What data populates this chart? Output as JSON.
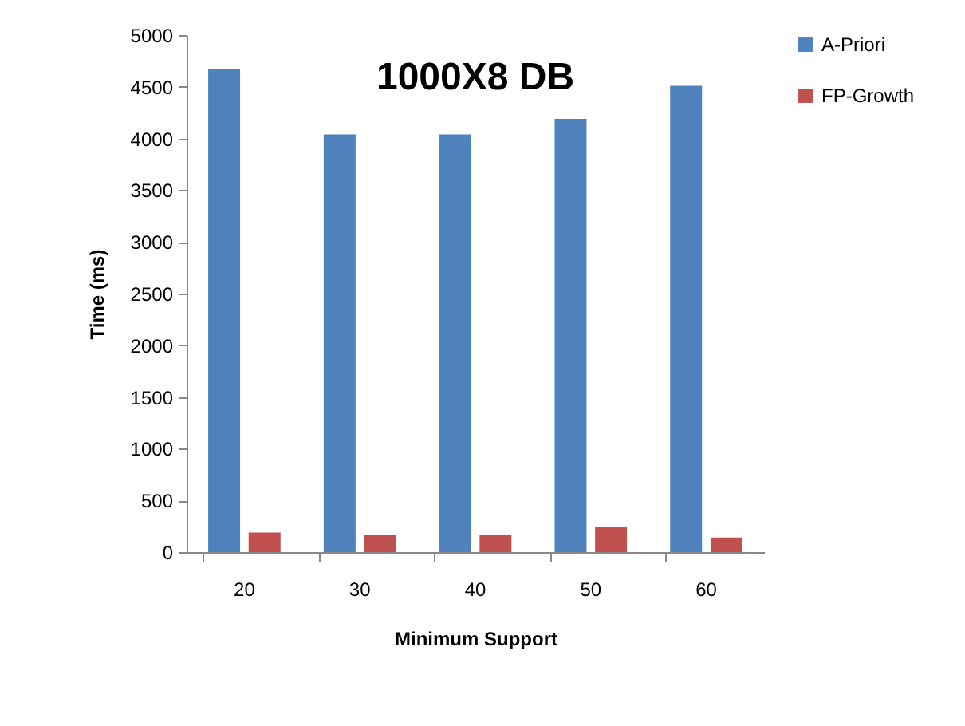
{
  "chart_data": {
    "type": "bar",
    "title": "1000X8 DB",
    "xlabel": "Minimum Support",
    "ylabel": "Time (ms)",
    "categories": [
      "20",
      "30",
      "40",
      "50",
      "60"
    ],
    "series": [
      {
        "name": "A-Priori",
        "color": "#4f81bd",
        "values": [
          4670,
          4040,
          4040,
          4190,
          4510
        ]
      },
      {
        "name": "FP-Growth",
        "color": "#c0504d",
        "values": [
          190,
          170,
          170,
          240,
          140
        ]
      }
    ],
    "ylim": [
      0,
      5000
    ],
    "yticks": [
      0,
      500,
      1000,
      1500,
      2000,
      2500,
      3000,
      3500,
      4000,
      4500,
      5000
    ],
    "grid": false,
    "legend": "right"
  }
}
